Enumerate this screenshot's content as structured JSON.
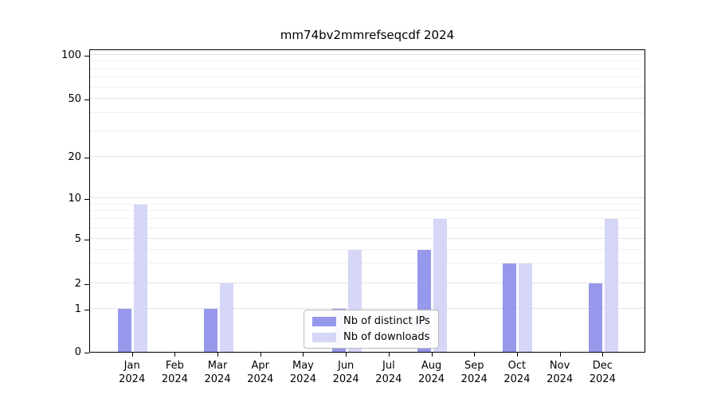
{
  "title": "mm74bv2mmrefseqcdf 2024",
  "chart_data": {
    "type": "bar",
    "categories": [
      "Jan",
      "Feb",
      "Mar",
      "Apr",
      "May",
      "Jun",
      "Jul",
      "Aug",
      "Sep",
      "Oct",
      "Nov",
      "Dec"
    ],
    "year": "2024",
    "series": [
      {
        "key": "distinct-ips",
        "name": "Nb of distinct IPs",
        "color": "#9698eb",
        "values": [
          1,
          0,
          1,
          0,
          0,
          1,
          0,
          4,
          0,
          3,
          0,
          2
        ]
      },
      {
        "key": "downloads",
        "name": "Nb of downloads",
        "color": "#d6d6f7",
        "values": [
          9,
          0,
          2,
          0,
          0,
          4,
          0,
          7,
          0,
          3,
          0,
          7
        ]
      }
    ],
    "title": "mm74bv2mmrefseqcdf 2024",
    "xlabel": "",
    "ylabel": "",
    "y_ticks": [
      0,
      1,
      2,
      5,
      10,
      20,
      50,
      100
    ],
    "y_minor_ticks": [
      3,
      4,
      6,
      7,
      8,
      9,
      30,
      40,
      60,
      70,
      80,
      90
    ],
    "y_scale": "log-like",
    "ylim": [
      0,
      110
    ],
    "grid": true,
    "legend_position": "bottom-center",
    "legend_entries": [
      "Nb of distinct IPs",
      "Nb of downloads"
    ]
  }
}
